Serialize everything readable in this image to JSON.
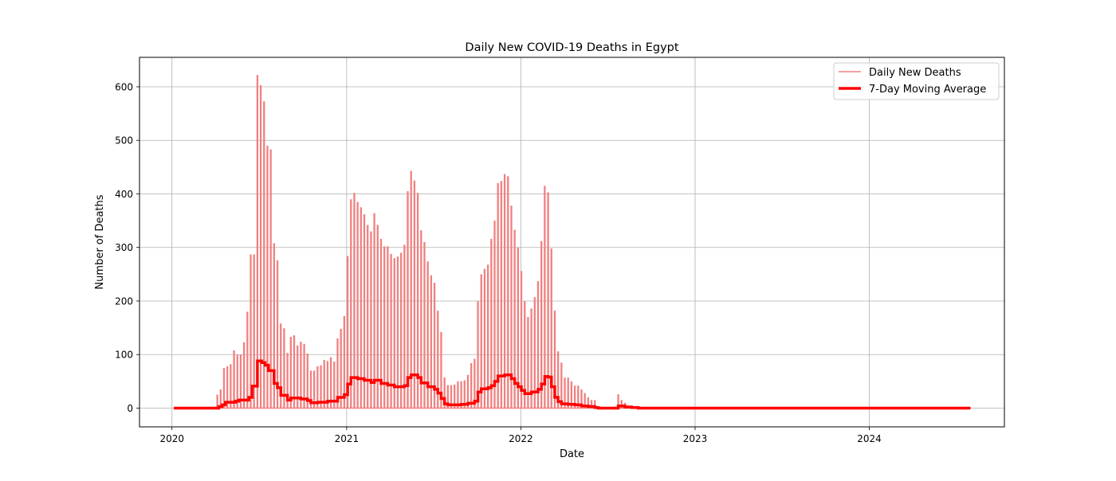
{
  "chart_data": {
    "type": "line",
    "title": "Daily New COVID-19 Deaths in Egypt",
    "xlabel": "Date",
    "ylabel": "Number of Deaths",
    "x_ticks": [
      "2020",
      "2021",
      "2022",
      "2023",
      "2024"
    ],
    "y_ticks": [
      0,
      100,
      200,
      300,
      400,
      500,
      600
    ],
    "xlim": [
      "2019-10-25",
      "2024-10-10"
    ],
    "ylim": [
      -35,
      655
    ],
    "grid": true,
    "legend": "top-right",
    "colors": {
      "daily": "#f08080",
      "average": "#ff0000"
    },
    "series": [
      {
        "name": "Daily New Deaths",
        "style": "bars",
        "values": [
          [
            "2020-01-05",
            0
          ],
          [
            "2020-03-01",
            0
          ],
          [
            "2020-04-05",
            25
          ],
          [
            "2020-04-12",
            35
          ],
          [
            "2020-04-19",
            75
          ],
          [
            "2020-04-26",
            78
          ],
          [
            "2020-05-03",
            82
          ],
          [
            "2020-05-10",
            108
          ],
          [
            "2020-05-17",
            100
          ],
          [
            "2020-05-24",
            100
          ],
          [
            "2020-05-31",
            123
          ],
          [
            "2020-06-07",
            180
          ],
          [
            "2020-06-14",
            287
          ],
          [
            "2020-06-21",
            287
          ],
          [
            "2020-06-28",
            622
          ],
          [
            "2020-07-05",
            603
          ],
          [
            "2020-07-12",
            573
          ],
          [
            "2020-07-19",
            490
          ],
          [
            "2020-07-26",
            483
          ],
          [
            "2020-08-02",
            308
          ],
          [
            "2020-08-09",
            276
          ],
          [
            "2020-08-16",
            158
          ],
          [
            "2020-08-23",
            149
          ],
          [
            "2020-08-30",
            103
          ],
          [
            "2020-09-06",
            133
          ],
          [
            "2020-09-13",
            136
          ],
          [
            "2020-09-20",
            117
          ],
          [
            "2020-09-27",
            124
          ],
          [
            "2020-10-04",
            120
          ],
          [
            "2020-10-11",
            102
          ],
          [
            "2020-10-18",
            70
          ],
          [
            "2020-10-25",
            70
          ],
          [
            "2020-11-01",
            78
          ],
          [
            "2020-11-08",
            80
          ],
          [
            "2020-11-15",
            90
          ],
          [
            "2020-11-22",
            88
          ],
          [
            "2020-11-29",
            95
          ],
          [
            "2020-12-06",
            87
          ],
          [
            "2020-12-13",
            130
          ],
          [
            "2020-12-20",
            148
          ],
          [
            "2020-12-27",
            172
          ],
          [
            "2021-01-03",
            284
          ],
          [
            "2021-01-10",
            390
          ],
          [
            "2021-01-17",
            402
          ],
          [
            "2021-01-24",
            385
          ],
          [
            "2021-01-31",
            375
          ],
          [
            "2021-02-07",
            362
          ],
          [
            "2021-02-14",
            342
          ],
          [
            "2021-02-21",
            330
          ],
          [
            "2021-02-28",
            364
          ],
          [
            "2021-03-07",
            342
          ],
          [
            "2021-03-14",
            316
          ],
          [
            "2021-03-21",
            302
          ],
          [
            "2021-03-28",
            302
          ],
          [
            "2021-04-04",
            288
          ],
          [
            "2021-04-11",
            280
          ],
          [
            "2021-04-18",
            283
          ],
          [
            "2021-04-25",
            290
          ],
          [
            "2021-05-02",
            305
          ],
          [
            "2021-05-09",
            405
          ],
          [
            "2021-05-16",
            443
          ],
          [
            "2021-05-23",
            425
          ],
          [
            "2021-05-30",
            402
          ],
          [
            "2021-06-06",
            332
          ],
          [
            "2021-06-13",
            310
          ],
          [
            "2021-06-20",
            274
          ],
          [
            "2021-06-27",
            248
          ],
          [
            "2021-07-04",
            234
          ],
          [
            "2021-07-11",
            182
          ],
          [
            "2021-07-18",
            142
          ],
          [
            "2021-07-25",
            57
          ],
          [
            "2021-08-01",
            43
          ],
          [
            "2021-08-08",
            43
          ],
          [
            "2021-08-15",
            44
          ],
          [
            "2021-08-22",
            50
          ],
          [
            "2021-08-29",
            50
          ],
          [
            "2021-09-05",
            52
          ],
          [
            "2021-09-12",
            62
          ],
          [
            "2021-09-19",
            84
          ],
          [
            "2021-09-26",
            92
          ],
          [
            "2021-10-03",
            200
          ],
          [
            "2021-10-10",
            250
          ],
          [
            "2021-10-17",
            260
          ],
          [
            "2021-10-24",
            268
          ],
          [
            "2021-10-31",
            316
          ],
          [
            "2021-11-07",
            350
          ],
          [
            "2021-11-14",
            420
          ],
          [
            "2021-11-21",
            424
          ],
          [
            "2021-11-28",
            437
          ],
          [
            "2021-12-05",
            433
          ],
          [
            "2021-12-12",
            378
          ],
          [
            "2021-12-19",
            333
          ],
          [
            "2021-12-26",
            300
          ],
          [
            "2022-01-02",
            256
          ],
          [
            "2022-01-09",
            200
          ],
          [
            "2022-01-16",
            170
          ],
          [
            "2022-01-23",
            186
          ],
          [
            "2022-01-30",
            207
          ],
          [
            "2022-02-06",
            237
          ],
          [
            "2022-02-13",
            312
          ],
          [
            "2022-02-20",
            415
          ],
          [
            "2022-02-27",
            403
          ],
          [
            "2022-03-06",
            298
          ],
          [
            "2022-03-13",
            182
          ],
          [
            "2022-03-20",
            106
          ],
          [
            "2022-03-27",
            85
          ],
          [
            "2022-04-03",
            57
          ],
          [
            "2022-04-10",
            57
          ],
          [
            "2022-04-17",
            50
          ],
          [
            "2022-04-24",
            42
          ],
          [
            "2022-05-01",
            42
          ],
          [
            "2022-05-08",
            35
          ],
          [
            "2022-05-15",
            28
          ],
          [
            "2022-05-22",
            20
          ],
          [
            "2022-05-29",
            15
          ],
          [
            "2022-06-05",
            15
          ],
          [
            "2022-06-12",
            0
          ],
          [
            "2022-07-17",
            0
          ],
          [
            "2022-07-24",
            26
          ],
          [
            "2022-07-31",
            15
          ],
          [
            "2022-08-07",
            10
          ],
          [
            "2022-08-14",
            5
          ],
          [
            "2022-08-21",
            5
          ],
          [
            "2022-08-28",
            3
          ],
          [
            "2022-09-04",
            2
          ],
          [
            "2022-09-11",
            0
          ],
          [
            "2022-09-18",
            0
          ]
        ]
      },
      {
        "name": "7-Day Moving Average",
        "style": "step",
        "values": [
          [
            "2020-01-05",
            0
          ],
          [
            "2020-04-01",
            0
          ],
          [
            "2020-04-08",
            3
          ],
          [
            "2020-04-15",
            6
          ],
          [
            "2020-04-22",
            11
          ],
          [
            "2020-05-13",
            13
          ],
          [
            "2020-05-20",
            15
          ],
          [
            "2020-06-03",
            15
          ],
          [
            "2020-06-10",
            20
          ],
          [
            "2020-06-17",
            41
          ],
          [
            "2020-06-28",
            88
          ],
          [
            "2020-07-07",
            85
          ],
          [
            "2020-07-14",
            80
          ],
          [
            "2020-07-21",
            70
          ],
          [
            "2020-08-02",
            46
          ],
          [
            "2020-08-09",
            38
          ],
          [
            "2020-08-16",
            24
          ],
          [
            "2020-08-30",
            15
          ],
          [
            "2020-09-06",
            19
          ],
          [
            "2020-09-27",
            17
          ],
          [
            "2020-10-11",
            14
          ],
          [
            "2020-10-18",
            10
          ],
          [
            "2020-11-01",
            11
          ],
          [
            "2020-11-22",
            13
          ],
          [
            "2020-12-13",
            20
          ],
          [
            "2020-12-27",
            25
          ],
          [
            "2021-01-03",
            45
          ],
          [
            "2021-01-10",
            57
          ],
          [
            "2021-01-24",
            55
          ],
          [
            "2021-02-07",
            52
          ],
          [
            "2021-02-21",
            48
          ],
          [
            "2021-02-28",
            52
          ],
          [
            "2021-03-14",
            46
          ],
          [
            "2021-03-28",
            43
          ],
          [
            "2021-04-11",
            40
          ],
          [
            "2021-05-02",
            42
          ],
          [
            "2021-05-09",
            57
          ],
          [
            "2021-05-16",
            62
          ],
          [
            "2021-05-30",
            57
          ],
          [
            "2021-06-06",
            47
          ],
          [
            "2021-06-20",
            40
          ],
          [
            "2021-07-04",
            35
          ],
          [
            "2021-07-11",
            28
          ],
          [
            "2021-07-18",
            18
          ],
          [
            "2021-07-25",
            8
          ],
          [
            "2021-08-01",
            6
          ],
          [
            "2021-08-29",
            7
          ],
          [
            "2021-09-12",
            9
          ],
          [
            "2021-09-26",
            13
          ],
          [
            "2021-10-03",
            30
          ],
          [
            "2021-10-10",
            36
          ],
          [
            "2021-10-24",
            38
          ],
          [
            "2021-10-31",
            42
          ],
          [
            "2021-11-07",
            50
          ],
          [
            "2021-11-14",
            60
          ],
          [
            "2021-11-28",
            62
          ],
          [
            "2021-12-12",
            55
          ],
          [
            "2021-12-19",
            46
          ],
          [
            "2021-12-26",
            40
          ],
          [
            "2022-01-02",
            33
          ],
          [
            "2022-01-09",
            27
          ],
          [
            "2022-01-23",
            30
          ],
          [
            "2022-02-06",
            35
          ],
          [
            "2022-02-13",
            45
          ],
          [
            "2022-02-20",
            59
          ],
          [
            "2022-02-27",
            58
          ],
          [
            "2022-03-06",
            40
          ],
          [
            "2022-03-13",
            20
          ],
          [
            "2022-03-20",
            12
          ],
          [
            "2022-03-27",
            8
          ],
          [
            "2022-04-10",
            7
          ],
          [
            "2022-04-24",
            6
          ],
          [
            "2022-05-08",
            4
          ],
          [
            "2022-05-22",
            3
          ],
          [
            "2022-06-05",
            1
          ],
          [
            "2022-06-12",
            0
          ],
          [
            "2022-07-24",
            4
          ],
          [
            "2022-08-07",
            2
          ],
          [
            "2022-08-21",
            1
          ],
          [
            "2022-09-04",
            0
          ],
          [
            "2024-07-31",
            0
          ]
        ]
      }
    ]
  }
}
